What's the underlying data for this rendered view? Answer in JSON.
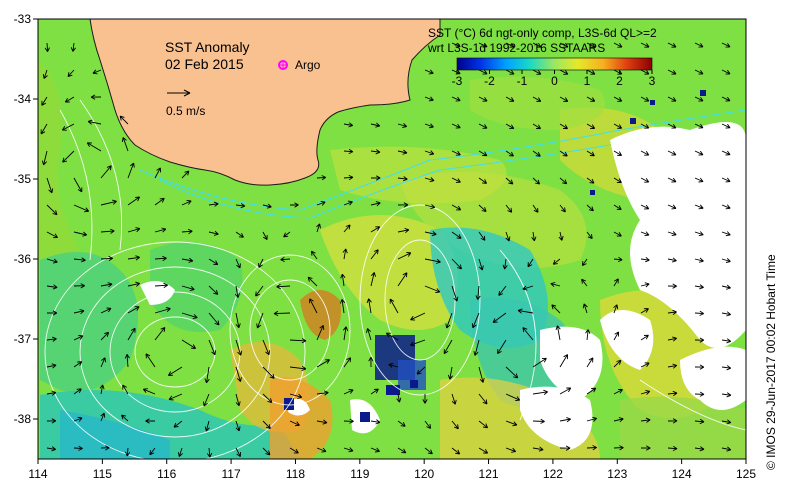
{
  "map": {
    "title": "SST Anomaly",
    "date": "02 Feb 2015",
    "legend_argo": "Argo",
    "scale_label": "0.5 m/s",
    "product_line1": "SST (°C) 6d ngt-only comp, L3S-6d QL>=2",
    "product_line2": "wrt L3S-1d 1992-2016 SSTAARS",
    "credit": "©  IMOS 29-Jun-2017 00:02 Hobart Time",
    "colorbar": {
      "min": -3,
      "max": 3,
      "ticks": [
        "-3",
        "-2",
        "-1",
        "0",
        "1",
        "2",
        "3"
      ]
    },
    "axes": {
      "x_ticks": [
        "114",
        "115",
        "116",
        "117",
        "118",
        "119",
        "120",
        "121",
        "122",
        "123",
        "124",
        "125"
      ],
      "y_ticks": [
        "-33",
        "-34",
        "-35",
        "-36",
        "-37",
        "-38"
      ],
      "lon_range": [
        114,
        125
      ],
      "lat_range": [
        -33,
        -38.5
      ]
    },
    "colors": {
      "land": "#f9c190",
      "argo_marker": "#ff00ff",
      "anomaly_ocean": "#7ee042",
      "anomaly_cool": "#2fc7b4",
      "anomaly_warm": "#e9e045",
      "missing": "#ffffff"
    }
  }
}
